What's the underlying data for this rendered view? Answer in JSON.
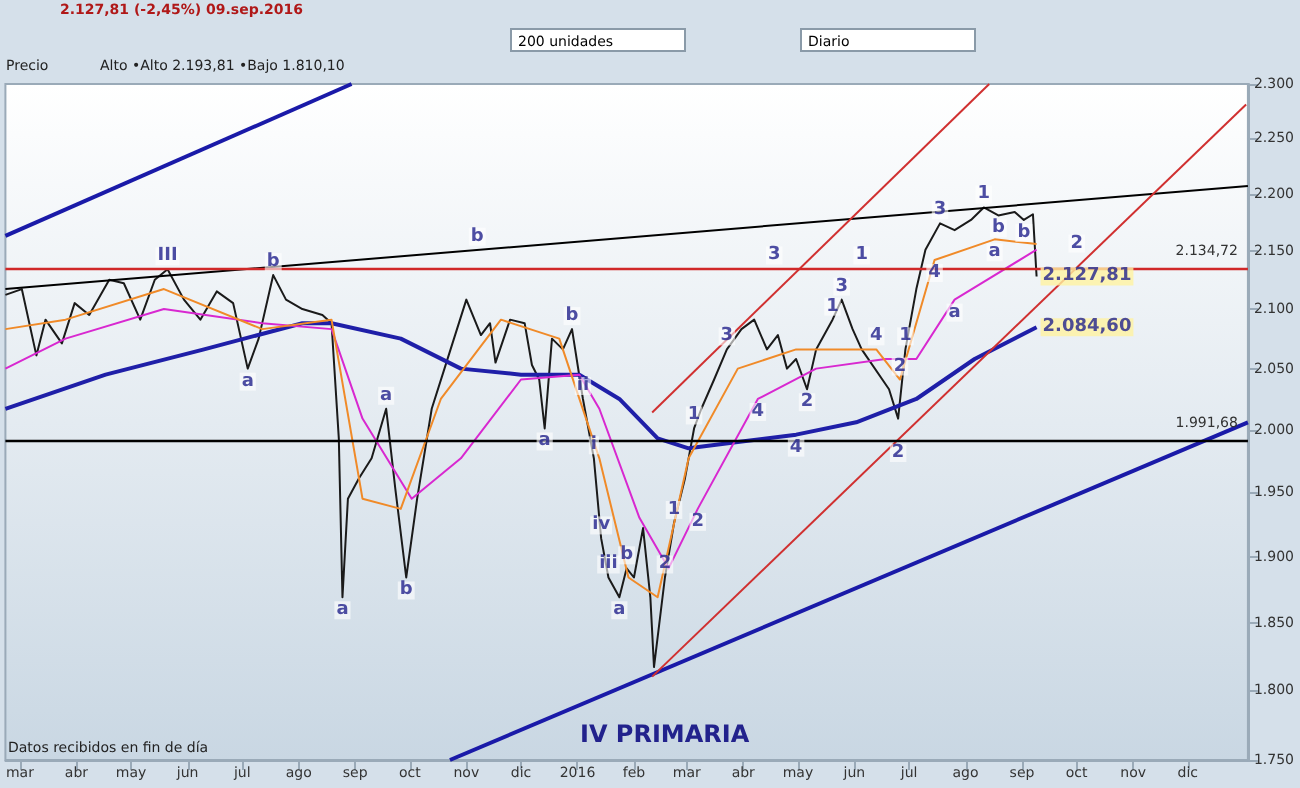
{
  "chart_data": {
    "type": "line",
    "subtitle": "2.127,81 (-2,45%) 09.sep.2016",
    "log": "y",
    "grid": false,
    "marker": "none",
    "xlim": [
      "2015-02-21",
      "2017-01-03"
    ],
    "xticks": [
      {
        "value": "2015-03-01",
        "label": "mar"
      },
      {
        "value": "2015-04-01",
        "label": "abr"
      },
      {
        "value": "2015-05-01",
        "label": "may"
      },
      {
        "value": "2015-06-01",
        "label": "jun"
      },
      {
        "value": "2015-07-01",
        "label": "jul"
      },
      {
        "value": "2015-08-01",
        "label": "ago"
      },
      {
        "value": "2015-09-01",
        "label": "sep"
      },
      {
        "value": "2015-10-01",
        "label": "oct"
      },
      {
        "value": "2015-11-01",
        "label": "nov"
      },
      {
        "value": "2015-12-01",
        "label": "dic"
      },
      {
        "value": "2016-01-01",
        "label": "2016"
      },
      {
        "value": "2016-02-01",
        "label": "feb"
      },
      {
        "value": "2016-03-01",
        "label": "mar"
      },
      {
        "value": "2016-04-01",
        "label": "abr"
      },
      {
        "value": "2016-05-01",
        "label": "may"
      },
      {
        "value": "2016-06-01",
        "label": "jun"
      },
      {
        "value": "2016-07-01",
        "label": "jul"
      },
      {
        "value": "2016-08-01",
        "label": "ago"
      },
      {
        "value": "2016-09-01",
        "label": "sep"
      },
      {
        "value": "2016-10-01",
        "label": "oct"
      },
      {
        "value": "2016-11-01",
        "label": "nov"
      },
      {
        "value": "2016-12-01",
        "label": "dic"
      }
    ],
    "ylim": [
      1750,
      2300
    ],
    "yticks": [
      {
        "value": 1750,
        "label": "1.750"
      },
      {
        "value": 1800,
        "label": "1.800"
      },
      {
        "value": 1850,
        "label": "1.850"
      },
      {
        "value": 1900,
        "label": "1.900"
      },
      {
        "value": 1950,
        "label": "1.950"
      },
      {
        "value": 2000,
        "label": "2.000"
      },
      {
        "value": 2050,
        "label": "2.050"
      },
      {
        "value": 2100,
        "label": "2.100"
      },
      {
        "value": 2150,
        "label": "2.150"
      },
      {
        "value": 2200,
        "label": "2.200"
      },
      {
        "value": 2250,
        "label": "2.250"
      },
      {
        "value": 2300,
        "label": "2.300"
      }
    ],
    "ref_lines": [
      {
        "axis": "y",
        "value": 2134.72,
        "label": "2.134,72",
        "color": "#d02828"
      },
      {
        "axis": "y",
        "value": 1991.68,
        "label": "1.991,68",
        "color": "#000000"
      }
    ],
    "series": [
      {
        "color": "#1a1a1a",
        "x": [
          "2015-02-21",
          "2015-03-02",
          "2015-03-10",
          "2015-03-15",
          "2015-03-24",
          "2015-03-31",
          "2015-04-08",
          "2015-04-19",
          "2015-04-27",
          "2015-05-06",
          "2015-05-14",
          "2015-05-21",
          "2015-05-30",
          "2015-06-08",
          "2015-06-17",
          "2015-06-26",
          "2015-07-04",
          "2015-07-10",
          "2015-07-18",
          "2015-07-25",
          "2015-08-03",
          "2015-08-14",
          "2015-08-19",
          "2015-08-23",
          "2015-08-25",
          "2015-08-28",
          "2015-09-03",
          "2015-09-10",
          "2015-09-18",
          "2015-09-23",
          "2015-09-29",
          "2015-10-05",
          "2015-10-13",
          "2015-10-20",
          "2015-11-01",
          "2015-11-09",
          "2015-11-14",
          "2015-11-17",
          "2015-11-25",
          "2015-12-03",
          "2015-12-07",
          "2015-12-11",
          "2015-12-14",
          "2015-12-18",
          "2015-12-24",
          "2015-12-29",
          "2016-01-04",
          "2016-01-10",
          "2016-01-14",
          "2016-01-18",
          "2016-01-24",
          "2016-01-28",
          "2016-02-01",
          "2016-02-06",
          "2016-02-10",
          "2016-02-12",
          "2016-02-18",
          "2016-02-23",
          "2016-02-29",
          "2016-03-05",
          "2016-03-09",
          "2016-03-16",
          "2016-03-23",
          "2016-03-31",
          "2016-04-07",
          "2016-04-14",
          "2016-04-20",
          "2016-04-25",
          "2016-04-30",
          "2016-05-06",
          "2016-05-11",
          "2016-05-20",
          "2016-05-25",
          "2016-05-31",
          "2016-06-05",
          "2016-06-20",
          "2016-06-25",
          "2016-06-29",
          "2016-07-05",
          "2016-07-10",
          "2016-07-18",
          "2016-07-26",
          "2016-08-04",
          "2016-08-11",
          "2016-08-19",
          "2016-08-28",
          "2016-09-02",
          "2016-09-07",
          "2016-09-09"
        ],
        "values": [
          2112,
          2117,
          2061,
          2091,
          2071,
          2105,
          2095,
          2125,
          2122,
          2091,
          2125,
          2134,
          2108,
          2091,
          2115,
          2105,
          2050,
          2075,
          2129,
          2108,
          2100,
          2095,
          2088,
          1993,
          1869,
          1945,
          1961,
          1977,
          2017,
          1953,
          1884,
          1945,
          2017,
          2050,
          2108,
          2078,
          2088,
          2055,
          2091,
          2088,
          2053,
          2041,
          2001,
          2075,
          2066,
          2083,
          2025,
          1977,
          1914,
          1884,
          1869,
          1891,
          1884,
          1922,
          1869,
          1817,
          1884,
          1926,
          1961,
          2001,
          2017,
          2041,
          2066,
          2083,
          2091,
          2066,
          2078,
          2050,
          2058,
          2033,
          2066,
          2091,
          2108,
          2083,
          2066,
          2033,
          2009,
          2066,
          2117,
          2151,
          2174,
          2168,
          2177,
          2188,
          2181,
          2184,
          2177,
          2182,
          2127.81
        ]
      },
      {
        "color": "#1f1fa8",
        "x": [
          "2015-02-21",
          "2015-04-17",
          "2015-06-10",
          "2015-08-03",
          "2015-08-19",
          "2015-09-26",
          "2015-10-29",
          "2015-12-01",
          "2016-01-02",
          "2016-01-24",
          "2016-02-14",
          "2016-03-02",
          "2016-03-29",
          "2016-04-30",
          "2016-06-02",
          "2016-07-05",
          "2016-08-06",
          "2016-09-09"
        ],
        "values": [
          2017,
          2045,
          2066,
          2088,
          2088,
          2075,
          2050,
          2045,
          2045,
          2025,
          1993,
          1985,
          1990,
          1996,
          2006,
          2025,
          2058,
          2084.6
        ]
      },
      {
        "color": "#d828d0",
        "x": [
          "2015-02-21",
          "2015-03-26",
          "2015-05-19",
          "2015-07-12",
          "2015-08-19",
          "2015-09-05",
          "2015-10-02",
          "2015-10-29",
          "2015-12-01",
          "2016-01-02",
          "2016-01-13",
          "2016-02-04",
          "2016-02-20",
          "2016-03-07",
          "2016-04-09",
          "2016-05-11",
          "2016-06-18",
          "2016-07-05",
          "2016-07-26",
          "2016-09-09"
        ],
        "values": [
          2050,
          2075,
          2100,
          2088,
          2083,
          2009,
          1945,
          1977,
          2041,
          2045,
          2017,
          1930,
          1891,
          1937,
          2025,
          2050,
          2058,
          2058,
          2108,
          2151
        ]
      },
      {
        "color": "#f08a28",
        "x": [
          "2015-02-21",
          "2015-03-26",
          "2015-05-19",
          "2015-07-12",
          "2015-08-19",
          "2015-09-05",
          "2015-09-26",
          "2015-10-18",
          "2015-11-20",
          "2015-12-22",
          "2016-01-13",
          "2016-01-29",
          "2016-02-14",
          "2016-03-02",
          "2016-03-29",
          "2016-04-30",
          "2016-06-13",
          "2016-06-26",
          "2016-07-15",
          "2016-08-17",
          "2016-09-09"
        ],
        "values": [
          2083,
          2091,
          2117,
          2083,
          2091,
          1945,
          1937,
          2025,
          2091,
          2075,
          1977,
          1884,
          1869,
          1977,
          2050,
          2066,
          2066,
          2041,
          2142,
          2160,
          2156
        ]
      },
      {
        "color": "#000000",
        "x": [
          "2015-02-21",
          "2017-01-03"
        ],
        "values": [
          2117,
          2207
        ]
      },
      {
        "color": "#1a1aa8",
        "x": [
          "2015-02-21",
          "2015-08-30"
        ],
        "values": [
          2163,
          2300
        ]
      },
      {
        "color": "#1a1aa8",
        "x": [
          "2015-10-23",
          "2017-01-03"
        ],
        "values": [
          1750,
          2006
        ]
      },
      {
        "color": "#d03030",
        "x": [
          "2016-02-11",
          "2017-01-02"
        ],
        "values": [
          1810,
          2281
        ]
      },
      {
        "color": "#d03030",
        "x": [
          "2016-02-11",
          "2016-08-14"
        ],
        "values": [
          2014,
          2300
        ]
      }
    ],
    "annotations": [
      "200 unidades",
      "Diario",
      "Precio",
      "Alto •Alto 2.193,81 •Bajo 1.810,10",
      "Datos recibidos en fin de día",
      "IV PRIMARIA",
      {
        "text": "2.127,81",
        "x": "2016-09-09",
        "y": 2127.81
      },
      {
        "text": "2.084,60",
        "x": "2016-09-09",
        "y": 2084.6
      },
      {
        "text": "III",
        "x": "2015-05-21",
        "y": 2134
      },
      {
        "text": "b",
        "x": "2015-07-18",
        "y": 2129
      },
      {
        "text": "b",
        "x": "2015-11-07",
        "y": 2151
      },
      {
        "text": "a",
        "x": "2015-07-04",
        "y": 2050
      },
      {
        "text": "a",
        "x": "2015-08-25",
        "y": 1869
      },
      {
        "text": "a",
        "x": "2015-09-18",
        "y": 2017
      },
      {
        "text": "b",
        "x": "2015-09-29",
        "y": 1884
      },
      {
        "text": "a",
        "x": "2015-12-14",
        "y": 2001
      },
      {
        "text": "b",
        "x": "2015-12-29",
        "y": 2083
      },
      {
        "text": "ii",
        "x": "2016-01-04",
        "y": 2025
      },
      {
        "text": "i",
        "x": "2016-01-10",
        "y": 1977
      },
      {
        "text": "iv",
        "x": "2016-01-14",
        "y": 1914
      },
      {
        "text": "iii",
        "x": "2016-01-18",
        "y": 1884
      },
      {
        "text": "a",
        "x": "2016-01-24",
        "y": 1869
      },
      {
        "text": "b",
        "x": "2016-01-28",
        "y": 1891
      },
      {
        "text": "1",
        "x": "2016-02-23",
        "y": 1926
      },
      {
        "text": "2",
        "x": "2016-02-18",
        "y": 1884
      },
      {
        "text": "1",
        "x": "2016-03-05",
        "y": 2001
      },
      {
        "text": "2",
        "x": "2016-03-07",
        "y": 1937
      },
      {
        "text": "3",
        "x": "2016-03-23",
        "y": 2066
      },
      {
        "text": "4",
        "x": "2016-04-09",
        "y": 2025
      },
      {
        "text": "3",
        "x": "2016-04-18",
        "y": 2134.72
      },
      {
        "text": "2",
        "x": "2016-05-06",
        "y": 2033
      },
      {
        "text": "1",
        "x": "2016-05-20",
        "y": 2091
      },
      {
        "text": "3",
        "x": "2016-05-25",
        "y": 2108
      },
      {
        "text": "4",
        "x": "2016-04-30",
        "y": 1996
      },
      {
        "text": "4",
        "x": "2016-06-13",
        "y": 2066
      },
      {
        "text": "1",
        "x": "2016-06-05",
        "y": 2134.72
      },
      {
        "text": "2",
        "x": "2016-06-25",
        "y": 1991.68
      },
      {
        "text": "1",
        "x": "2016-06-29",
        "y": 2066
      },
      {
        "text": "2",
        "x": "2016-06-26",
        "y": 2041
      },
      {
        "text": "3",
        "x": "2016-07-18",
        "y": 2174
      },
      {
        "text": "4",
        "x": "2016-07-15",
        "y": 2142
      },
      {
        "text": "1",
        "x": "2016-08-11",
        "y": 2188
      },
      {
        "text": "a",
        "x": "2016-08-17",
        "y": 2160
      },
      {
        "text": "b",
        "x": "2016-08-19",
        "y": 2181
      },
      {
        "text": "a",
        "x": "2016-07-26",
        "y": 2108
      },
      {
        "text": "b",
        "x": "2016-09-02",
        "y": 2177
      },
      {
        "text": "2",
        "x": "2016-10-01",
        "y": 2145
      }
    ]
  }
}
